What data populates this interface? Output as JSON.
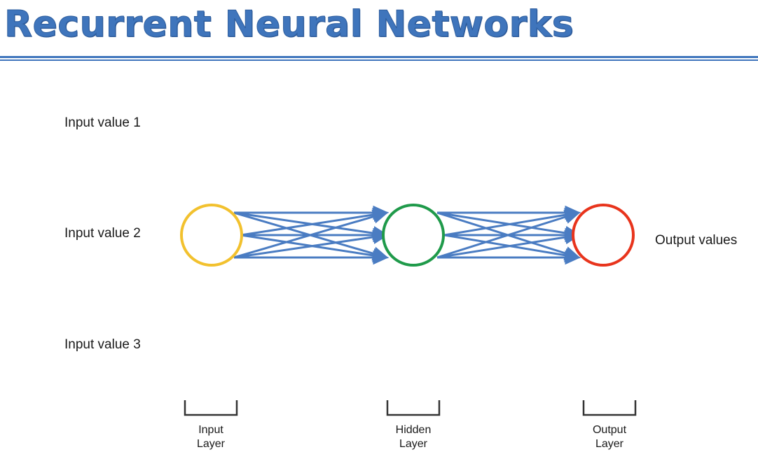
{
  "title": "Recurrent Neural Networks",
  "inputs": [
    "Input value 1",
    "Input value 2",
    "Input value 3"
  ],
  "output_label": "Output values",
  "layers": [
    {
      "line1": "Input",
      "line2": "Layer",
      "color": "#f2c12e"
    },
    {
      "line1": "Hidden",
      "line2": "Layer",
      "color": "#1f9a4a"
    },
    {
      "line1": "Output",
      "line2": "Layer",
      "color": "#e8341c"
    }
  ],
  "colors": {
    "title": "#3f75bc",
    "arrow": "#4a7cc2",
    "bracket": "#333333"
  }
}
